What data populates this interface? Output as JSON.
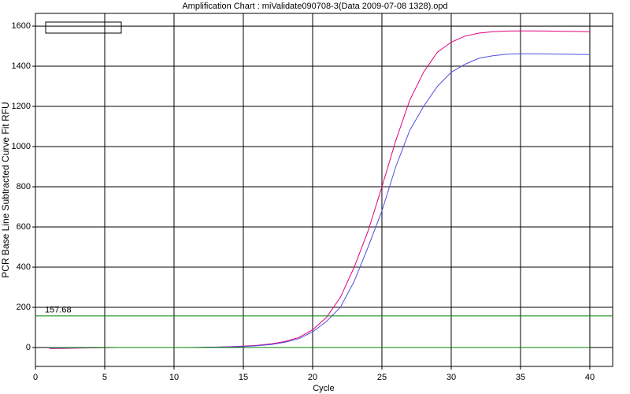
{
  "chart_data": {
    "type": "line",
    "title": "Amplification Chart : miValidate090708-3(Data 2009-07-08 1328).opd",
    "xlabel": "Cycle",
    "ylabel": "PCR Base Line Subtracted Curve Fit RFU",
    "x": [
      1,
      2,
      3,
      4,
      5,
      6,
      7,
      8,
      9,
      10,
      11,
      12,
      13,
      14,
      15,
      16,
      17,
      18,
      19,
      20,
      21,
      22,
      23,
      24,
      25,
      26,
      27,
      28,
      29,
      30,
      31,
      32,
      33,
      34,
      35,
      36,
      37,
      38,
      39,
      40
    ],
    "series": [
      {
        "color": "#e0007a",
        "values": [
          -5,
          -4,
          -3,
          -2,
          -1,
          0,
          0,
          0,
          0,
          0,
          0,
          1,
          2,
          4,
          7,
          11,
          18,
          30,
          50,
          88,
          150,
          250,
          400,
          580,
          800,
          1030,
          1230,
          1370,
          1470,
          1520,
          1550,
          1565,
          1572,
          1575,
          1576,
          1576,
          1575,
          1574,
          1573,
          1572
        ]
      },
      {
        "color": "#5050e0",
        "values": [
          -2,
          -2,
          -1,
          -1,
          0,
          0,
          0,
          0,
          0,
          0,
          0,
          1,
          2,
          3,
          5,
          9,
          15,
          26,
          44,
          78,
          130,
          200,
          330,
          500,
          680,
          900,
          1080,
          1200,
          1300,
          1370,
          1410,
          1440,
          1452,
          1460,
          1462,
          1462,
          1461,
          1460,
          1459,
          1458
        ]
      },
      {
        "color": "#008000",
        "values": [
          0,
          0,
          0,
          0,
          0,
          0,
          0,
          0,
          0,
          0,
          0,
          0,
          0,
          0,
          0,
          0,
          0,
          0,
          0,
          0,
          0,
          0,
          0,
          0,
          0,
          0,
          0,
          0,
          0,
          0,
          0,
          0,
          0,
          0,
          0,
          0,
          0,
          0,
          0,
          0
        ]
      }
    ],
    "threshold": 157.68,
    "threshold_color": "#008000",
    "xlim": [
      0,
      41.65
    ],
    "xticks": [
      0,
      5,
      10,
      15,
      20,
      25,
      30,
      35,
      40
    ],
    "ylim": [
      -94,
      1663
    ],
    "yticks": [
      0,
      200,
      400,
      600,
      800,
      1000,
      1200,
      1400,
      1600
    ],
    "grid": true
  }
}
